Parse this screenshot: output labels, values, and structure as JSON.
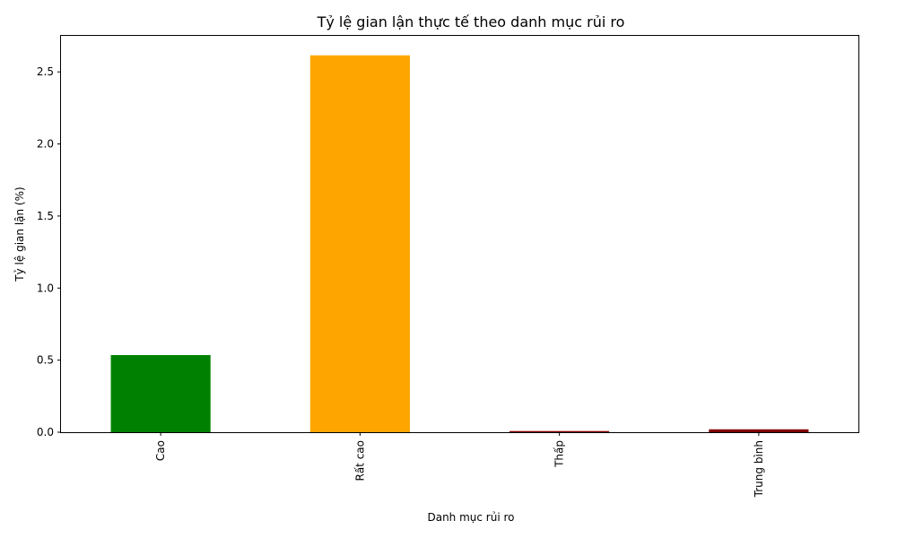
{
  "chart_data": {
    "type": "bar",
    "title": "Tỷ lệ gian lận thực tế theo danh mục rủi ro",
    "xlabel": "Danh mục rủi ro",
    "ylabel": "Tỷ lệ gian lận (%)",
    "categories": [
      "Cao",
      "Rất cao",
      "Thấp",
      "Trung bình"
    ],
    "values": [
      0.535,
      2.615,
      0.008,
      0.02
    ],
    "colors": [
      "#008000",
      "#ffa500",
      "#8b0000",
      "#800000"
    ],
    "ylim": [
      0,
      2.75
    ],
    "yticks": [
      0.0,
      0.5,
      1.0,
      1.5,
      2.0,
      2.5
    ],
    "ytick_labels": [
      "0.0",
      "0.5",
      "1.0",
      "1.5",
      "2.0",
      "2.5"
    ],
    "grid": false,
    "legend": false
  }
}
